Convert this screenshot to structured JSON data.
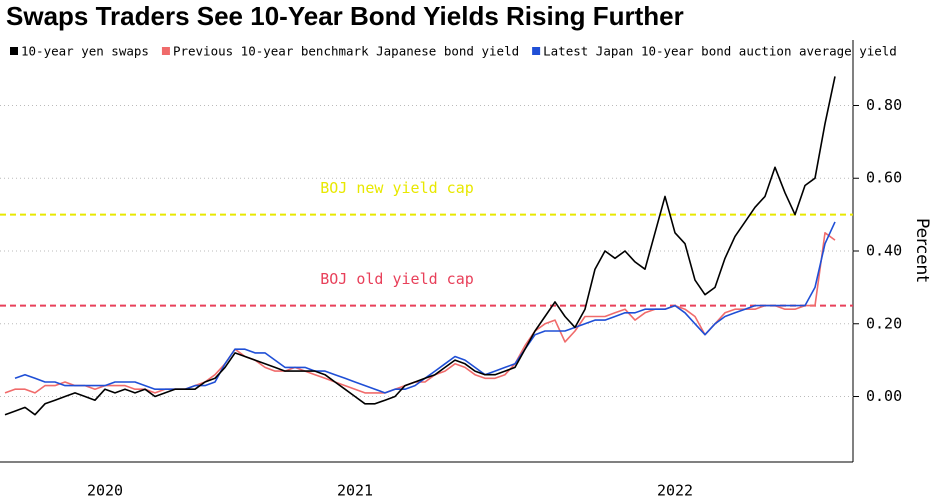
{
  "chart_data": {
    "type": "line",
    "title": "Swaps Traders See 10-Year Bond Yields Rising Further",
    "y_label": "Percent",
    "categories": [
      null,
      null,
      null,
      null,
      null,
      null,
      null,
      null,
      null,
      null,
      "2020",
      null,
      null,
      null,
      null,
      null,
      null,
      null,
      null,
      null,
      null,
      null,
      null,
      null,
      null,
      null,
      null,
      null,
      null,
      null,
      null,
      null,
      null,
      null,
      null,
      "2021",
      null,
      null,
      null,
      null,
      null,
      null,
      null,
      null,
      null,
      null,
      null,
      null,
      null,
      null,
      null,
      null,
      null,
      null,
      null,
      null,
      null,
      null,
      null,
      null,
      null,
      null,
      null,
      null,
      null,
      null,
      null,
      "2022",
      null,
      null,
      null,
      null,
      null,
      null,
      null,
      null,
      null,
      null,
      null,
      null,
      null,
      null,
      null,
      null
    ],
    "series": [
      {
        "name": "10-year yen swaps",
        "color": "#000000",
        "values": [
          -0.05,
          -0.04,
          -0.03,
          -0.05,
          -0.02,
          -0.01,
          0.0,
          0.01,
          0.0,
          -0.01,
          0.02,
          0.01,
          0.02,
          0.01,
          0.02,
          0.0,
          0.01,
          0.02,
          0.02,
          0.02,
          0.04,
          0.05,
          0.08,
          0.12,
          0.11,
          0.1,
          0.09,
          0.08,
          0.07,
          0.07,
          0.07,
          0.07,
          0.06,
          0.04,
          0.02,
          0.0,
          -0.02,
          -0.02,
          -0.01,
          0.0,
          0.03,
          0.04,
          0.05,
          0.06,
          0.08,
          0.1,
          0.09,
          0.07,
          0.06,
          0.06,
          0.07,
          0.08,
          0.13,
          0.18,
          0.22,
          0.26,
          0.22,
          0.19,
          0.24,
          0.35,
          0.4,
          0.38,
          0.4,
          0.37,
          0.35,
          0.45,
          0.55,
          0.45,
          0.42,
          0.32,
          0.28,
          0.3,
          0.38,
          0.44,
          0.48,
          0.52,
          0.55,
          0.63,
          0.56,
          0.5,
          0.58,
          0.6,
          0.75,
          0.88
        ]
      },
      {
        "name": "Previous 10-year benchmark Japanese bond yield",
        "color": "#f06b6b",
        "values": [
          0.01,
          0.02,
          0.02,
          0.01,
          0.03,
          0.03,
          0.04,
          0.03,
          0.03,
          0.02,
          0.03,
          0.03,
          0.03,
          0.02,
          0.02,
          0.01,
          0.02,
          0.02,
          0.02,
          0.03,
          0.04,
          0.06,
          0.09,
          0.13,
          0.11,
          0.1,
          0.08,
          0.07,
          0.07,
          0.08,
          0.07,
          0.06,
          0.05,
          0.04,
          0.03,
          0.02,
          0.01,
          0.01,
          0.01,
          0.02,
          0.03,
          0.04,
          0.04,
          0.06,
          0.07,
          0.09,
          0.08,
          0.06,
          0.05,
          0.05,
          0.06,
          0.09,
          0.14,
          0.18,
          0.2,
          0.21,
          0.15,
          0.18,
          0.22,
          0.22,
          0.22,
          0.23,
          0.24,
          0.21,
          0.23,
          0.24,
          0.24,
          0.25,
          0.24,
          0.22,
          0.17,
          0.2,
          0.23,
          0.24,
          0.24,
          0.24,
          0.25,
          0.25,
          0.24,
          0.24,
          0.25,
          0.25,
          0.45,
          0.43
        ]
      },
      {
        "name": "Latest Japan 10-year bond auction average yield",
        "color": "#1f4fd6",
        "values": [
          null,
          0.05,
          0.06,
          0.05,
          0.04,
          0.04,
          0.03,
          0.03,
          0.03,
          0.03,
          0.03,
          0.04,
          0.04,
          0.04,
          0.03,
          0.02,
          0.02,
          0.02,
          0.02,
          0.03,
          0.03,
          0.04,
          0.09,
          0.13,
          0.13,
          0.12,
          0.12,
          0.1,
          0.08,
          0.08,
          0.08,
          0.07,
          0.07,
          0.06,
          0.05,
          0.04,
          0.03,
          0.02,
          0.01,
          0.02,
          0.02,
          0.03,
          0.05,
          0.07,
          0.09,
          0.11,
          0.1,
          0.08,
          0.06,
          0.07,
          0.08,
          0.09,
          0.13,
          0.17,
          0.18,
          0.18,
          0.18,
          0.19,
          0.2,
          0.21,
          0.21,
          0.22,
          0.23,
          0.23,
          0.24,
          0.24,
          0.24,
          0.25,
          0.23,
          0.2,
          0.17,
          0.2,
          0.22,
          0.23,
          0.24,
          0.25,
          0.25,
          0.25,
          0.25,
          0.25,
          0.25,
          0.3,
          0.42,
          0.48
        ]
      }
    ],
    "reference_lines": [
      {
        "label": "BOJ new yield cap",
        "value": 0.5,
        "color": "#e8e800"
      },
      {
        "label": "BOJ old yield cap",
        "value": 0.25,
        "color": "#e8405a"
      }
    ],
    "ylim": [
      -0.18,
      0.98
    ],
    "yticks": [
      {
        "value": 0,
        "label": "0.00"
      },
      {
        "value": 0.2,
        "label": "0.20"
      },
      {
        "value": 0.4,
        "label": "0.40"
      },
      {
        "value": 0.6,
        "label": "0.60"
      },
      {
        "value": 0.8,
        "label": "0.80"
      }
    ],
    "grid": true
  }
}
